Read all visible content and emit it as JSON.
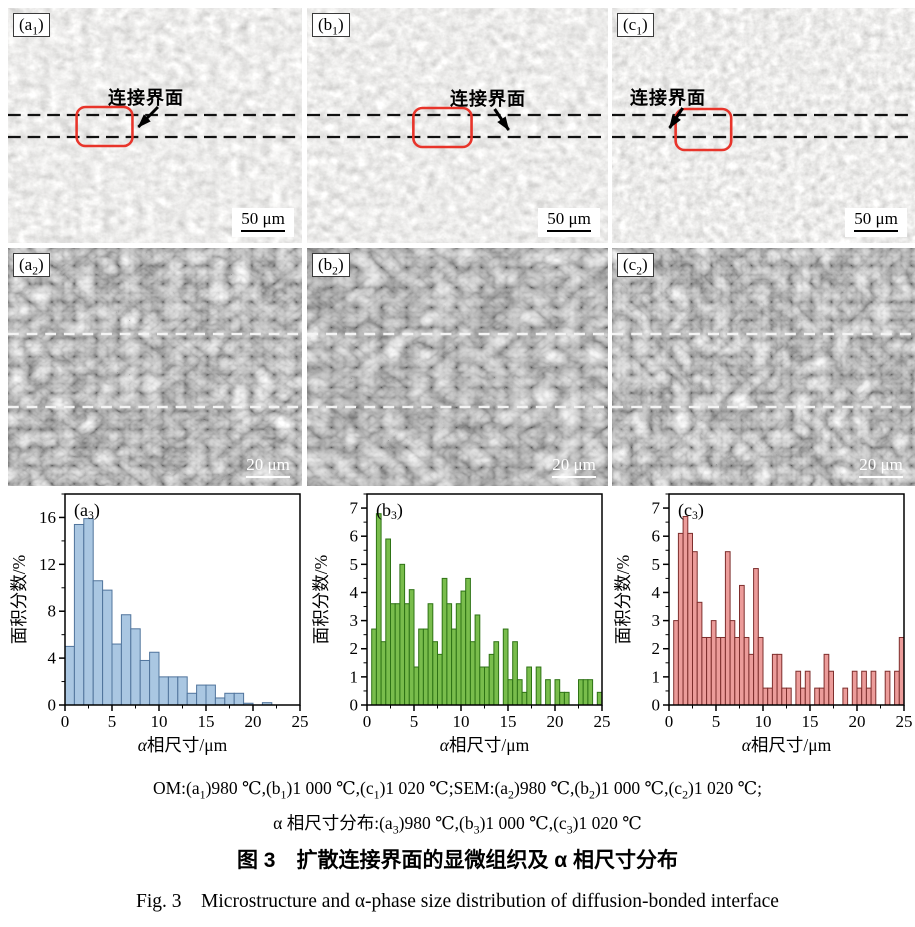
{
  "figure_title_zh": "图 3　扩散连接界面的显微组织及 α 相尺寸分布",
  "figure_title_en": "Fig. 3　Microstructure and α-phase size distribution of diffusion-bonded interface",
  "caption": {
    "line1": "OM:(a₁)980 ℃,(b₁)1 000 ℃,(c₁)1 020 ℃;SEM:(a₂)980 ℃,(b₂)1 000 ℃,(c₂)1 020 ℃;",
    "line2": "α 相尺寸分布:(a₃)980 ℃,(b₃)1 000 ℃,(c₃)1 020 ℃"
  },
  "panels_om": [
    {
      "label": "(a₁)",
      "annotation": "连接界面",
      "scale": "50 μm"
    },
    {
      "label": "(b₁)",
      "annotation": "连接界面",
      "scale": "50 μm"
    },
    {
      "label": "(c₁)",
      "annotation": "连接界面",
      "scale": "50 μm"
    }
  ],
  "panels_sem": [
    {
      "label": "(a₂)",
      "scale": "20 μm"
    },
    {
      "label": "(b₂)",
      "scale": "20 μm"
    },
    {
      "label": "(c₂)",
      "scale": "20 μm"
    }
  ],
  "colors": {
    "interface_box": "#e8342a",
    "hist_a_fill": "#aac7e2",
    "hist_a_stroke": "#50749c",
    "hist_b_fill": "#79bd4c",
    "hist_b_stroke": "#2e7315",
    "hist_c_fill": "#ec9c9a",
    "hist_c_stroke": "#7e2f2d"
  },
  "chart_data": [
    {
      "type": "bar",
      "label": "(a₃)",
      "ylabel": "面积分数/%",
      "xlabel": "α相尺寸/μm",
      "xlim": [
        0,
        25
      ],
      "ylim": [
        0,
        18
      ],
      "xticks": [
        0,
        5,
        10,
        15,
        20,
        25
      ],
      "yticks": [
        0,
        4,
        8,
        12,
        16
      ],
      "bin_width": 1,
      "fill": "#aac7e2",
      "stroke": "#50749c",
      "grid": false,
      "bars": [
        [
          0,
          5.0
        ],
        [
          1,
          15.4
        ],
        [
          2,
          15.9
        ],
        [
          3,
          10.6
        ],
        [
          4,
          9.8
        ],
        [
          5,
          5.2
        ],
        [
          6,
          7.7
        ],
        [
          7,
          6.5
        ],
        [
          8,
          3.8
        ],
        [
          9,
          4.5
        ],
        [
          10,
          2.4
        ],
        [
          11,
          2.4
        ],
        [
          12,
          2.4
        ],
        [
          13,
          1.0
        ],
        [
          14,
          1.7
        ],
        [
          15,
          1.7
        ],
        [
          16,
          0.6
        ],
        [
          17,
          1.0
        ],
        [
          18,
          1.0
        ],
        [
          19,
          0.15
        ],
        [
          21,
          0.2
        ]
      ]
    },
    {
      "type": "bar",
      "label": "(b₃)",
      "ylabel": "面积分数/%",
      "xlabel": "α相尺寸/μm",
      "xlim": [
        0,
        25
      ],
      "ylim": [
        0,
        7.5
      ],
      "xticks": [
        0,
        5,
        10,
        15,
        20,
        25
      ],
      "yticks": [
        0,
        1,
        2,
        3,
        4,
        5,
        6,
        7
      ],
      "bin_width": 0.5,
      "fill": "#79bd4c",
      "stroke": "#2e7315",
      "grid": false,
      "bars": [
        [
          0.5,
          2.7
        ],
        [
          1,
          6.8
        ],
        [
          1.5,
          2.25
        ],
        [
          2,
          5.9
        ],
        [
          2.5,
          3.6
        ],
        [
          3,
          3.6
        ],
        [
          3.5,
          5.0
        ],
        [
          4,
          3.6
        ],
        [
          4.5,
          4.1
        ],
        [
          5,
          1.35
        ],
        [
          5.5,
          2.7
        ],
        [
          6,
          2.7
        ],
        [
          6.5,
          3.6
        ],
        [
          7,
          2.25
        ],
        [
          7.5,
          1.8
        ],
        [
          8,
          4.5
        ],
        [
          8.5,
          3.6
        ],
        [
          9,
          2.7
        ],
        [
          9.5,
          3.6
        ],
        [
          10,
          4.05
        ],
        [
          10.5,
          4.5
        ],
        [
          11,
          2.25
        ],
        [
          11.5,
          3.2
        ],
        [
          12,
          1.35
        ],
        [
          12.5,
          1.35
        ],
        [
          13,
          1.8
        ],
        [
          13.5,
          2.25
        ],
        [
          14.5,
          2.7
        ],
        [
          15,
          0.9
        ],
        [
          15.5,
          2.25
        ],
        [
          16,
          0.9
        ],
        [
          16.5,
          0.45
        ],
        [
          17,
          1.35
        ],
        [
          18,
          1.35
        ],
        [
          19,
          0.9
        ],
        [
          20,
          0.9
        ],
        [
          20.5,
          0.45
        ],
        [
          21,
          0.45
        ],
        [
          22.5,
          0.9
        ],
        [
          23,
          0.9
        ],
        [
          23.5,
          0.9
        ],
        [
          24.5,
          0.45
        ]
      ]
    },
    {
      "type": "bar",
      "label": "(c₃)",
      "ylabel": "面积分数/%",
      "xlabel": "α相尺寸/μm",
      "xlim": [
        0,
        25
      ],
      "ylim": [
        0,
        7.5
      ],
      "xticks": [
        0,
        5,
        10,
        15,
        20,
        25
      ],
      "yticks": [
        0,
        1,
        2,
        3,
        4,
        5,
        6,
        7
      ],
      "bin_width": 0.5,
      "fill": "#ec9c9a",
      "stroke": "#7e2f2d",
      "grid": false,
      "bars": [
        [
          0.5,
          3.0
        ],
        [
          1,
          6.1
        ],
        [
          1.5,
          6.7
        ],
        [
          2,
          6.1
        ],
        [
          2.5,
          5.45
        ],
        [
          3,
          3.65
        ],
        [
          3.5,
          2.4
        ],
        [
          4,
          2.4
        ],
        [
          4.5,
          3.0
        ],
        [
          5,
          2.4
        ],
        [
          5.5,
          2.4
        ],
        [
          6,
          5.45
        ],
        [
          6.5,
          3.0
        ],
        [
          7,
          2.4
        ],
        [
          7.5,
          4.25
        ],
        [
          8,
          2.4
        ],
        [
          8.5,
          1.8
        ],
        [
          9,
          4.85
        ],
        [
          9.5,
          2.4
        ],
        [
          10,
          0.6
        ],
        [
          10.5,
          0.6
        ],
        [
          11,
          1.8
        ],
        [
          11.5,
          1.8
        ],
        [
          12,
          0.6
        ],
        [
          12.5,
          0.6
        ],
        [
          13.5,
          1.2
        ],
        [
          14,
          0.6
        ],
        [
          14.5,
          1.2
        ],
        [
          15.5,
          0.6
        ],
        [
          16,
          0.6
        ],
        [
          16.5,
          1.8
        ],
        [
          17,
          1.2
        ],
        [
          18.5,
          0.6
        ],
        [
          19.5,
          1.2
        ],
        [
          20,
          0.6
        ],
        [
          20.5,
          1.2
        ],
        [
          21,
          0.6
        ],
        [
          21.5,
          1.2
        ],
        [
          23,
          1.2
        ],
        [
          24,
          1.2
        ],
        [
          24.5,
          2.4
        ]
      ]
    }
  ]
}
